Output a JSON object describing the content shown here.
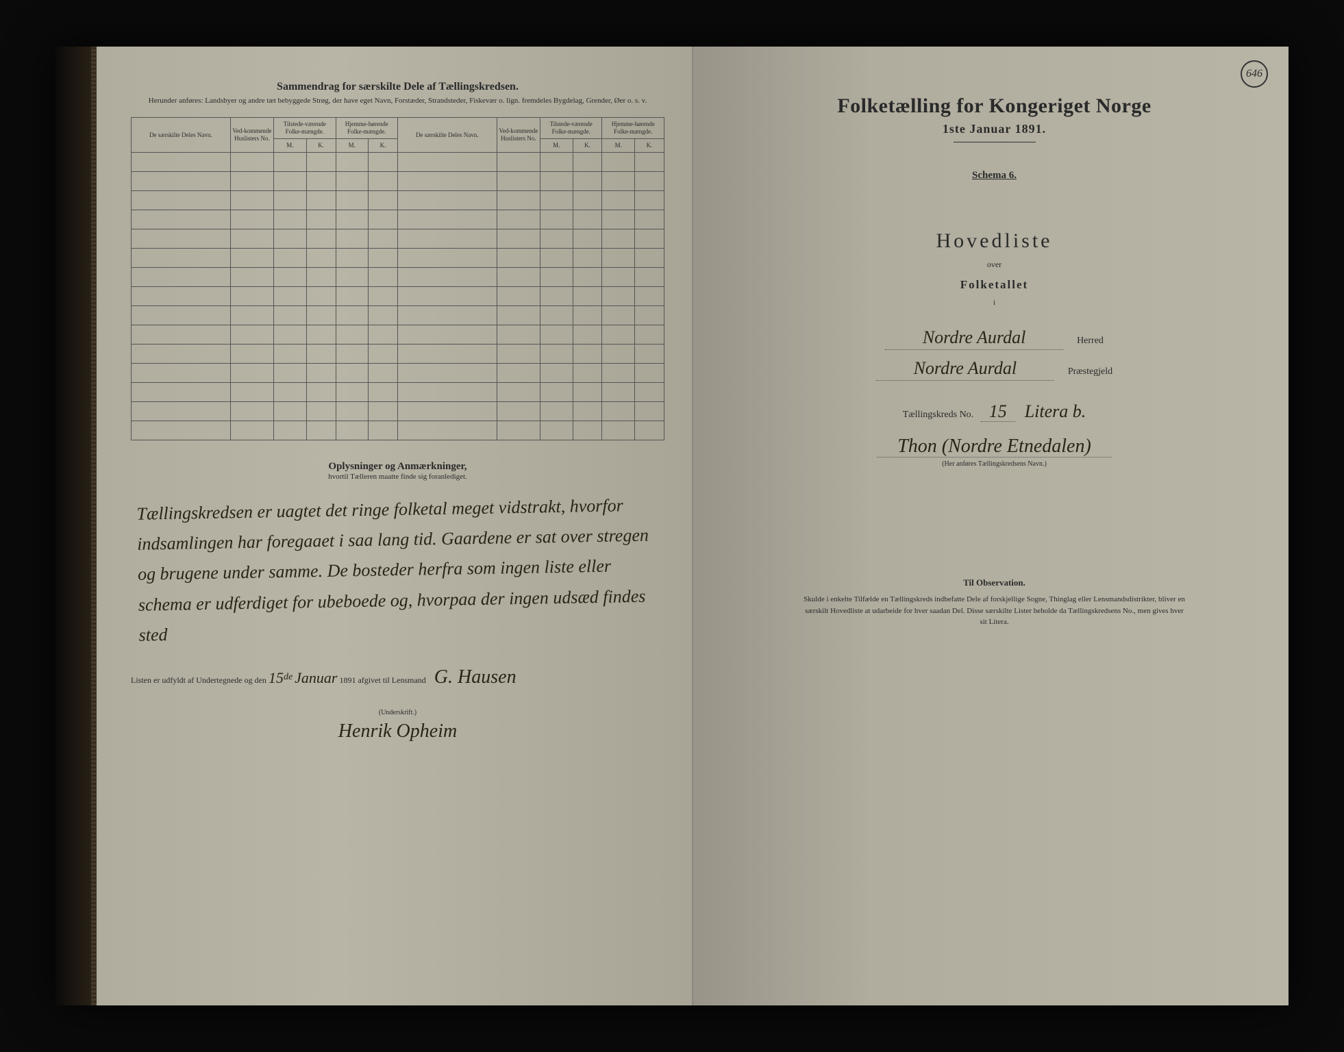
{
  "leftPage": {
    "sectionTitle": "Sammendrag for særskilte Dele af Tællingskredsen.",
    "sectionSub": "Herunder anføres: Landsbyer og andre tæt bebyggede Strøg, der have eget Navn, Forstæder, Strandsteder, Fiskevær o. lign. fremdeles Bygdelag, Grender, Øer o. s. v.",
    "headers": {
      "col1": "De særskilte Deles Navn.",
      "col2": "Ved-kommende Huslisters No.",
      "col3": "Tilstede-værende Folke-mængde.",
      "col4": "Hjemme-hørende Folke-mængde.",
      "col5": "De særskilte Deles Navn.",
      "col6": "Ved-kommende Huslisters No.",
      "col7": "Tilstede-værende Folke-mængde.",
      "col8": "Hjemme-hørende Folke-mængde.",
      "m": "M.",
      "k": "K."
    },
    "emptyRowCount": 15,
    "remarksTitle": "Oplysninger og Anmærkninger,",
    "remarksSub": "hvortil Tælleren maatte finde sig foranlediget.",
    "handwriting": "Tællingskredsen er uagtet det ringe folketal meget vidstrakt, hvorfor indsamlingen har foregaaet i saa lang tid. Gaardene er sat over stregen og brugene under samme. De bosteder herfra som ingen liste eller schema er udferdiget for ubeboede og, hvorpaa der ingen udsæd findes sted",
    "signLinePrefix": "Listen er udfyldt af Undertegnede og den",
    "signDateDay": "15",
    "signDateSuffix": "de",
    "signMonth": "Januar",
    "signYear": "1891",
    "signAfter": "afgivet til Lensmand",
    "lensmand": "G. Hausen",
    "underskriftLabel": "(Underskrift.)",
    "signature": "Henrik Opheim"
  },
  "rightPage": {
    "pageNumber": "646",
    "mainTitle": "Folketælling for Kongeriget Norge",
    "mainDate": "1ste Januar 1891.",
    "schema": "Schema 6.",
    "hoved": "Hovedliste",
    "over": "over",
    "folketal": "Folketallet",
    "i": "i",
    "herredValue": "Nordre Aurdal",
    "herredLabel": "Herred",
    "prasteValue": "Nordre Aurdal",
    "prasteLabel": "Præstegjeld",
    "kredsLabel": "Tællingskreds No.",
    "kredsNo": "15",
    "litera": "Litera b.",
    "kredsName": "Thon (Nordre Etnedalen)",
    "kredsNameSub": "(Her anføres Tællingskredsens Navn.)",
    "obsTitle": "Til Observation.",
    "obsBody": "Skulde i enkelte Tilfælde en Tællingskreds indbefatte Dele af forskjellige Sogne, Thinglag eller Lensmandsdistrikter, bliver en særskilt Hovedliste at udarbeide for hver saadan Del. Disse særskilte Lister beholde da Tællingskredsens No., men gives hver sit Litera."
  },
  "colors": {
    "ink": "#2a2a2a",
    "handInk": "#2a2418",
    "paperLight": "#b8b4a6",
    "paperDark": "#989488"
  }
}
